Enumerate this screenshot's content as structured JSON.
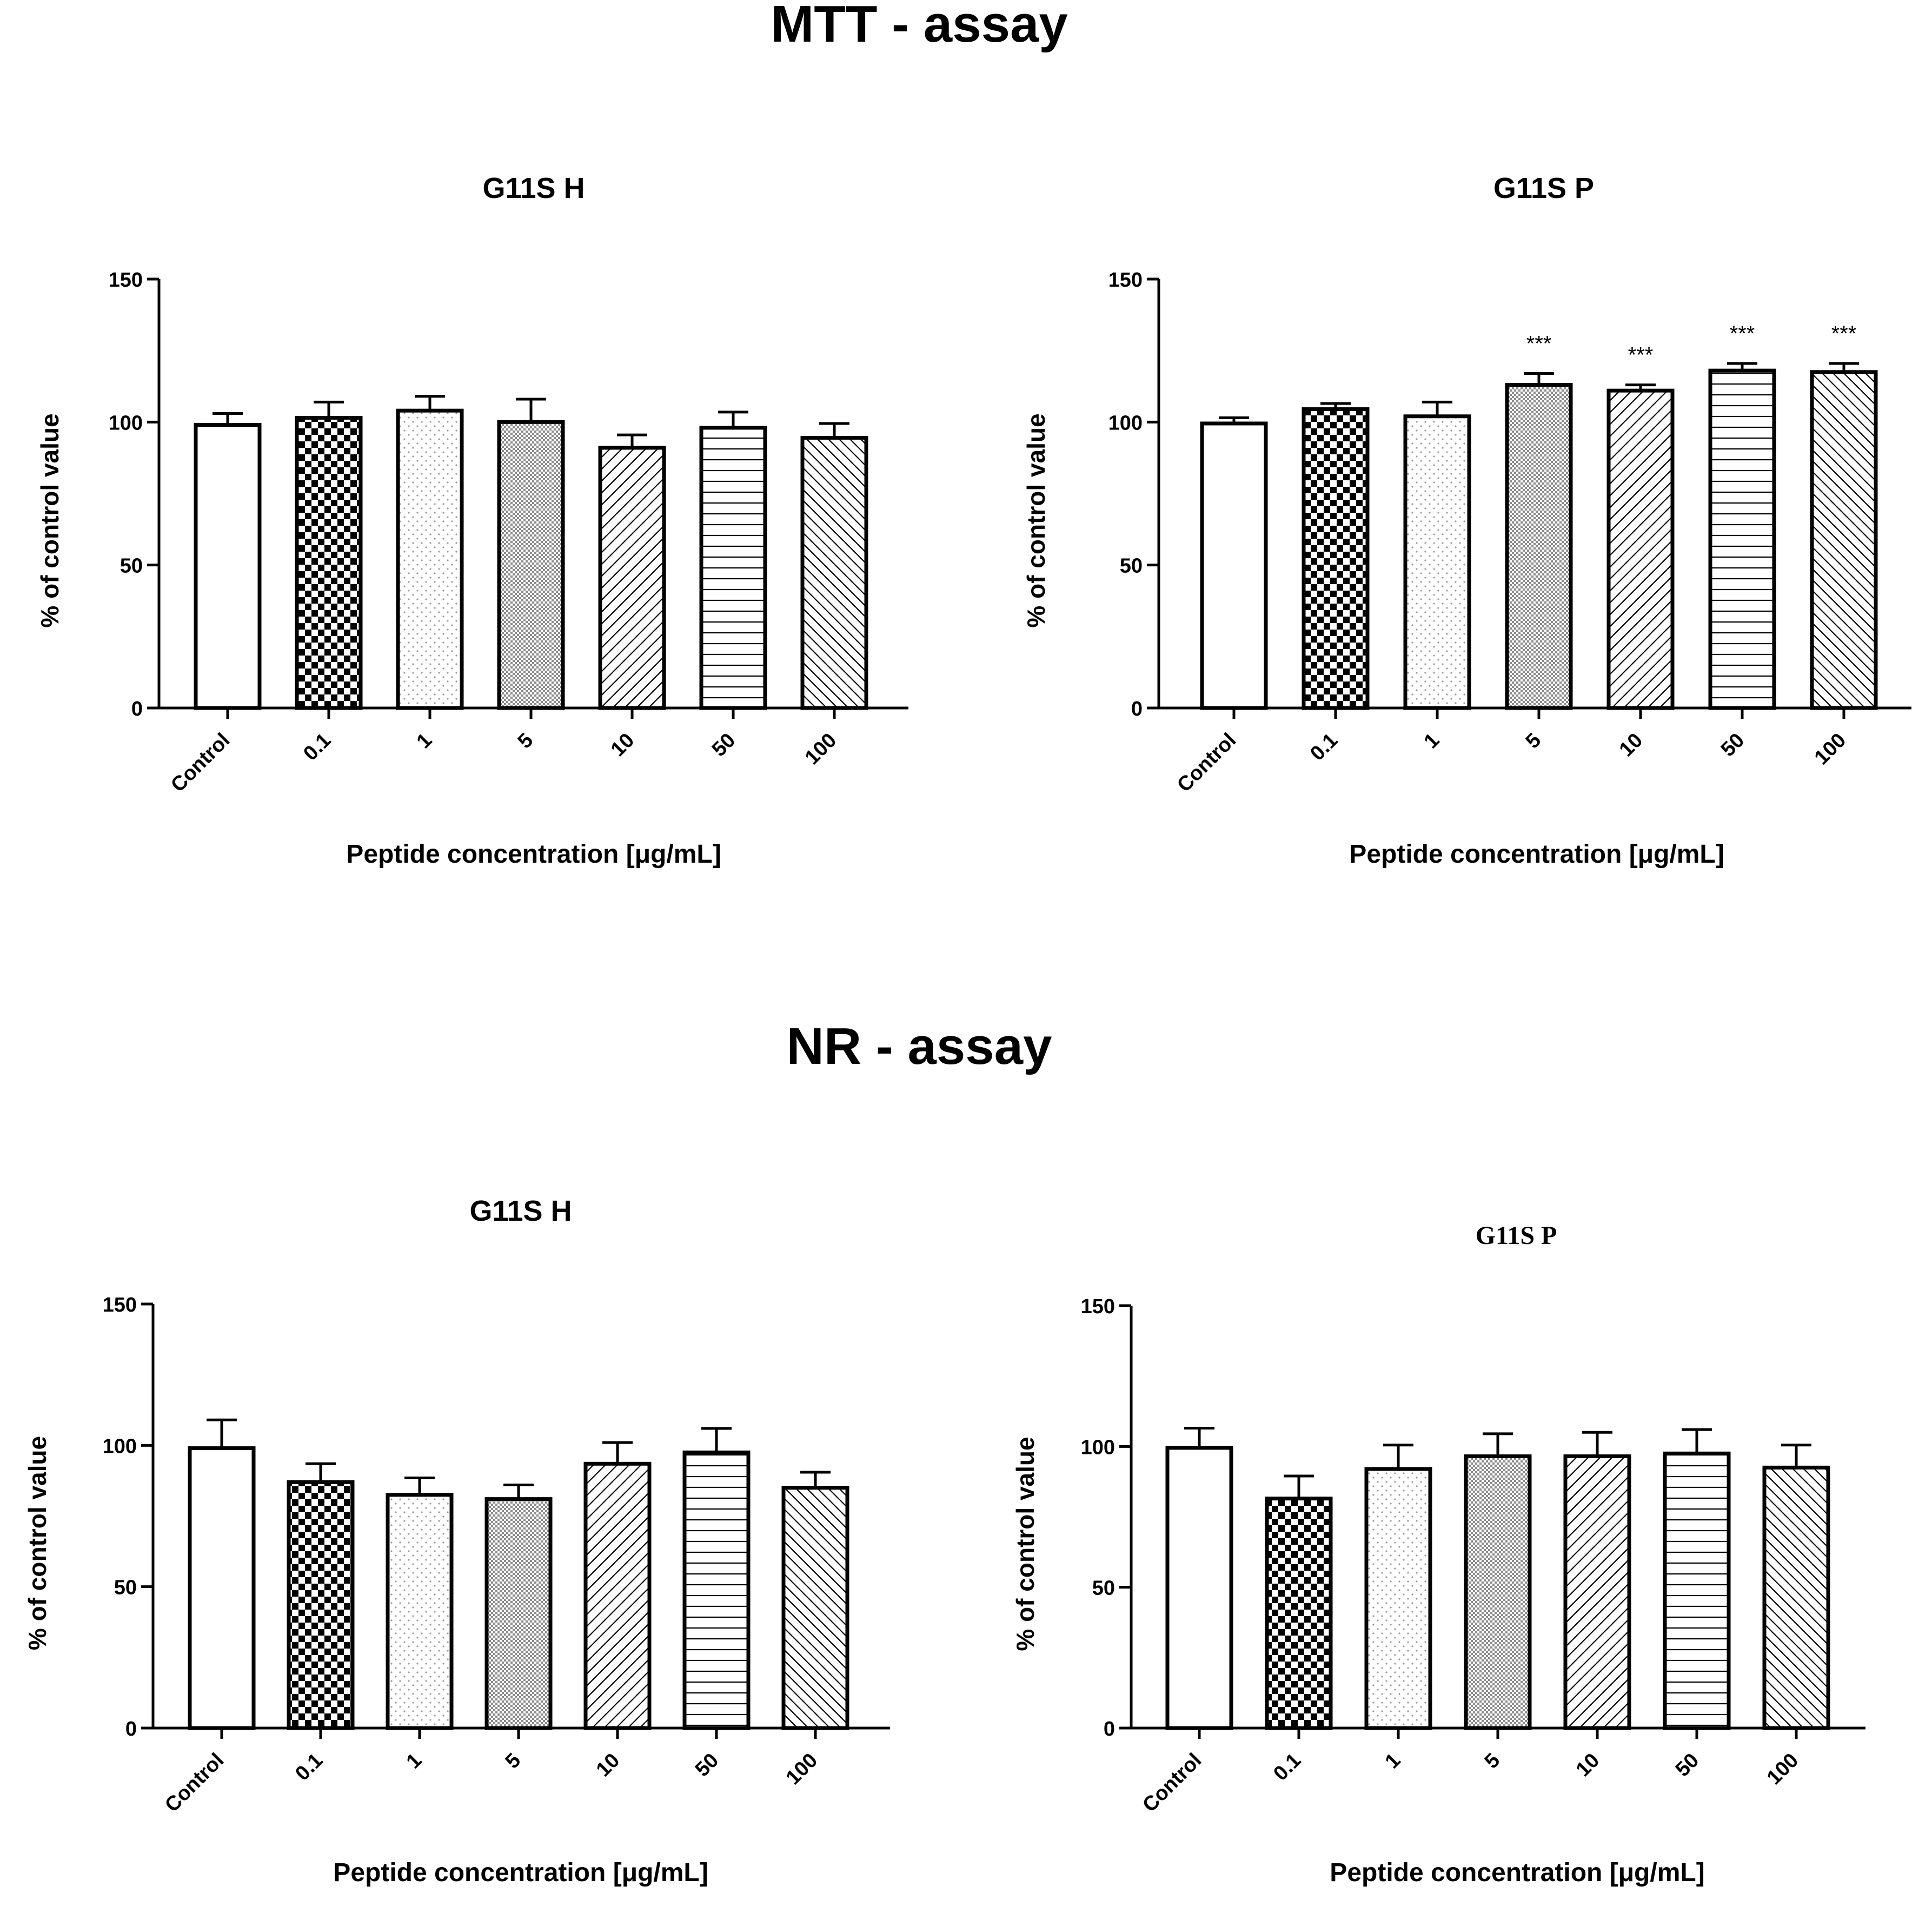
{
  "sections": [
    {
      "title": "MTT - assay"
    },
    {
      "title": "NR - assay"
    }
  ],
  "chart_data": [
    {
      "type": "bar",
      "section": "MTT - assay",
      "title": "G11S H",
      "xlabel": "Peptide concentration [μg/mL]",
      "ylabel": "% of control value",
      "ylim": [
        0,
        150
      ],
      "yticks": [
        "0",
        "50",
        "100",
        "150"
      ],
      "categories": [
        "Control",
        "0.1",
        "1",
        "5",
        "10",
        "50",
        "100"
      ],
      "values": [
        99,
        101.5,
        104,
        100,
        91,
        98,
        94.5
      ],
      "errors": [
        4,
        5.5,
        5,
        8,
        4.5,
        5.5,
        5
      ],
      "annotations": [
        "",
        "",
        "",
        "",
        "",
        "",
        ""
      ]
    },
    {
      "type": "bar",
      "section": "MTT - assay",
      "title": "G11S P",
      "xlabel": "Peptide concentration [μg/mL]",
      "ylabel": "% of control value",
      "ylim": [
        0,
        150
      ],
      "yticks": [
        "0",
        "50",
        "100",
        "150"
      ],
      "categories": [
        "Control",
        "0.1",
        "1",
        "5",
        "10",
        "50",
        "100"
      ],
      "values": [
        99.5,
        104.5,
        102,
        113,
        111,
        118,
        117.5
      ],
      "errors": [
        2,
        2,
        5,
        4,
        2,
        2.5,
        3
      ],
      "annotations": [
        "",
        "",
        "",
        "***",
        "***",
        "***",
        "***"
      ]
    },
    {
      "type": "bar",
      "section": "NR - assay",
      "title": "G11S H",
      "xlabel": "Peptide concentration [μg/mL]",
      "ylabel": "% of control value",
      "ylim": [
        0,
        150
      ],
      "yticks": [
        "0",
        "50",
        "100",
        "150"
      ],
      "categories": [
        "Control",
        "0.1",
        "1",
        "5",
        "10",
        "50",
        "100"
      ],
      "values": [
        99,
        87,
        82.5,
        81,
        93.5,
        97.5,
        85
      ],
      "errors": [
        10,
        6.5,
        6,
        5,
        7.5,
        8.5,
        5.5
      ],
      "annotations": [
        "",
        "",
        "",
        "",
        "",
        "",
        ""
      ]
    },
    {
      "type": "bar",
      "section": "NR - assay",
      "title": "G11S P",
      "xlabel": "Peptide concentration [μg/mL]",
      "ylabel": "% of control value",
      "ylim": [
        0,
        150
      ],
      "yticks": [
        "0",
        "50",
        "100",
        "150"
      ],
      "categories": [
        "Control",
        "0.1",
        "1",
        "5",
        "10",
        "50",
        "100"
      ],
      "values": [
        99.5,
        81.5,
        92,
        96.5,
        96.5,
        97.5,
        92.5
      ],
      "errors": [
        7,
        8,
        8.5,
        8,
        8.5,
        8.5,
        8
      ],
      "annotations": [
        "",
        "",
        "",
        "",
        "",
        "",
        ""
      ]
    }
  ]
}
